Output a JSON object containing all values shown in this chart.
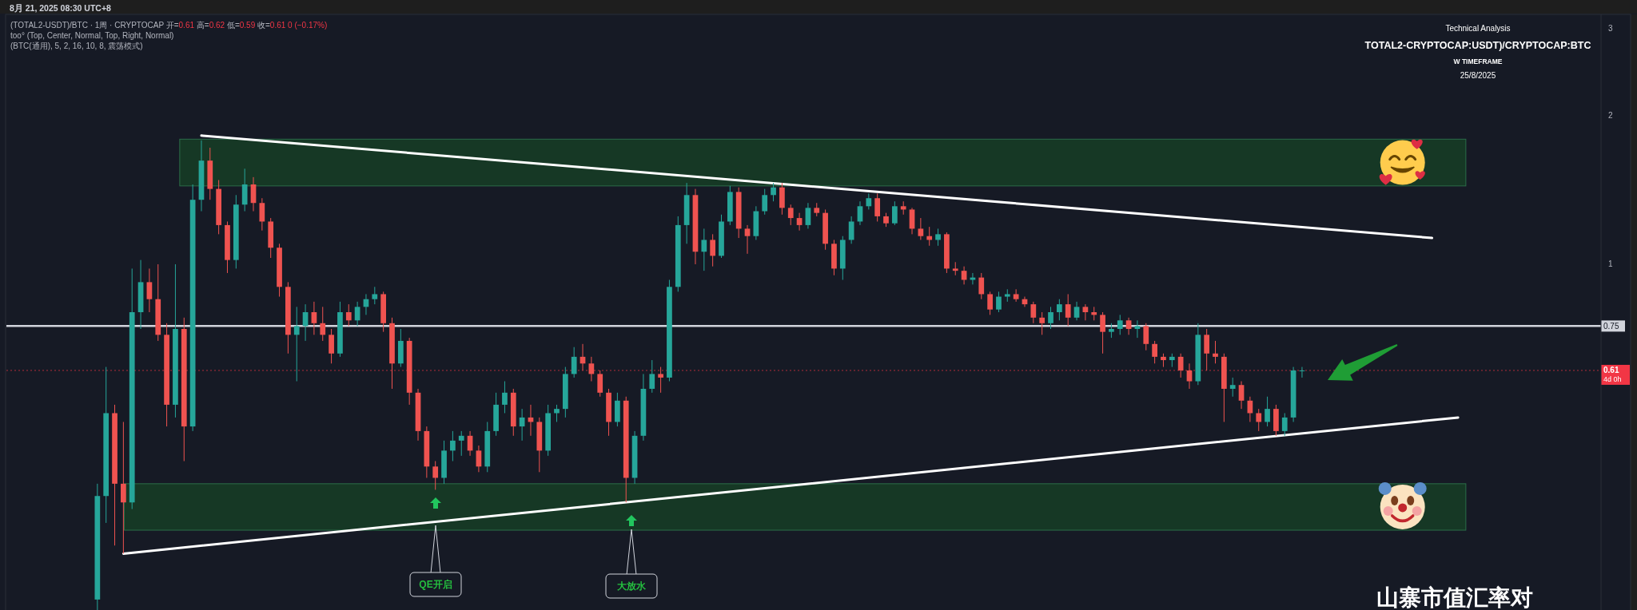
{
  "chart_data": {
    "type": "candlestick",
    "title": "TOTAL2-CRYPTOCAP:USDT)/CRYPTOCAP:BTC",
    "annotations": [
      "8月 21, 2025 08:30 UTC+8",
      "(TOTAL2-USDT)/BTC · 1周 · CRYPTOCAP 开=0.61 高=0.62 低=0.59 收=0.61 0 (−0.17%)",
      "too° (Top, Center, Normal, Top, Right, Normal)",
      "(BTC(通用), 5, 2, 16, 10, 8, 震荡模式)",
      "Technical Analysis",
      "W TIMEFRAME",
      "25/8/2025",
      "QE开启",
      "大放水",
      "山寨市值汇率对"
    ],
    "categories": [
      null,
      null,
      null,
      null,
      null,
      null,
      null,
      null,
      null,
      null,
      null,
      null,
      null,
      null,
      null,
      null,
      null,
      null,
      null,
      null,
      null,
      null,
      null,
      null,
      null,
      null,
      null,
      null,
      null,
      null,
      null,
      null,
      null,
      null,
      null,
      null,
      null,
      null,
      null,
      null,
      null,
      null,
      null,
      null,
      null,
      null,
      null,
      null,
      null,
      null,
      null,
      null,
      null,
      null,
      null,
      null,
      null,
      null,
      null,
      null,
      null,
      null,
      null,
      null,
      null,
      null,
      null,
      null,
      null,
      null,
      null,
      null,
      null,
      null,
      null,
      null,
      null,
      null,
      null,
      null,
      null,
      null,
      null,
      null,
      null,
      null,
      null,
      null,
      null,
      null,
      null,
      null,
      null,
      null,
      null,
      null,
      null,
      null,
      null,
      null,
      null,
      null,
      null,
      null,
      null,
      null,
      null,
      null,
      null,
      null,
      null,
      null,
      null,
      null,
      null,
      null,
      null,
      null,
      null,
      null,
      null,
      null,
      null,
      null,
      null,
      null,
      null,
      null,
      null,
      null,
      null,
      null,
      null,
      null,
      null,
      null,
      null,
      null,
      null,
      null,
      null,
      null,
      null,
      null,
      null,
      null,
      null,
      null,
      null,
      null,
      null,
      null,
      null,
      null,
      null,
      null,
      null,
      null,
      null,
      null,
      null,
      null,
      null,
      null,
      null,
      null,
      null,
      null,
      null,
      null,
      null,
      null,
      null,
      null,
      null,
      null,
      null,
      null,
      null,
      null,
      null,
      null,
      null,
      null
    ],
    "ohlc": [
      null,
      null,
      null,
      null,
      null,
      null,
      null,
      null,
      null,
      null,
      [
        0.21,
        0.36,
        0.2,
        0.34
      ],
      [
        0.34,
        0.62,
        0.3,
        0.5
      ],
      [
        0.5,
        0.52,
        0.27,
        0.36
      ],
      [
        0.36,
        0.48,
        0.26,
        0.33
      ],
      [
        0.33,
        0.98,
        0.32,
        0.8
      ],
      [
        0.8,
        1.02,
        0.74,
        0.92
      ],
      [
        0.92,
        0.98,
        0.8,
        0.85
      ],
      [
        0.85,
        1.0,
        0.7,
        0.72
      ],
      [
        0.72,
        0.76,
        0.47,
        0.52
      ],
      [
        0.52,
        1.0,
        0.49,
        0.74
      ],
      [
        0.74,
        0.78,
        0.4,
        0.47
      ],
      [
        0.47,
        1.45,
        0.46,
        1.35
      ],
      [
        1.35,
        1.78,
        1.28,
        1.62
      ],
      [
        1.62,
        1.72,
        1.35,
        1.42
      ],
      [
        1.42,
        1.48,
        1.15,
        1.2
      ],
      [
        1.2,
        1.22,
        0.96,
        1.02
      ],
      [
        1.02,
        1.38,
        0.98,
        1.32
      ],
      [
        1.32,
        1.56,
        1.28,
        1.45
      ],
      [
        1.45,
        1.5,
        1.28,
        1.33
      ],
      [
        1.33,
        1.36,
        1.17,
        1.22
      ],
      [
        1.22,
        1.24,
        1.03,
        1.08
      ],
      [
        1.08,
        1.1,
        0.86,
        0.9
      ],
      [
        0.9,
        0.92,
        0.66,
        0.72
      ],
      [
        0.72,
        0.82,
        0.58,
        0.75
      ],
      [
        0.75,
        0.83,
        0.7,
        0.8
      ],
      [
        0.8,
        0.84,
        0.72,
        0.76
      ],
      [
        0.76,
        0.82,
        0.7,
        0.72
      ],
      [
        0.72,
        0.74,
        0.63,
        0.66
      ],
      [
        0.66,
        0.84,
        0.65,
        0.8
      ],
      [
        0.8,
        0.83,
        0.75,
        0.77
      ],
      [
        0.77,
        0.84,
        0.75,
        0.82
      ],
      [
        0.82,
        0.87,
        0.79,
        0.85
      ],
      [
        0.85,
        0.9,
        0.83,
        0.87
      ],
      [
        0.87,
        0.88,
        0.73,
        0.76
      ],
      [
        0.76,
        0.78,
        0.56,
        0.63
      ],
      [
        0.63,
        0.74,
        0.62,
        0.7
      ],
      [
        0.7,
        0.71,
        0.52,
        0.55
      ],
      [
        0.55,
        0.56,
        0.44,
        0.46
      ],
      [
        0.46,
        0.47,
        0.37,
        0.39
      ],
      [
        0.39,
        0.4,
        0.35,
        0.37
      ],
      [
        0.37,
        0.44,
        0.36,
        0.42
      ],
      [
        0.42,
        0.46,
        0.4,
        0.44
      ],
      [
        0.44,
        0.46,
        0.41,
        0.45
      ],
      [
        0.45,
        0.46,
        0.41,
        0.42
      ],
      [
        0.42,
        0.43,
        0.38,
        0.39
      ],
      [
        0.39,
        0.48,
        0.38,
        0.46
      ],
      [
        0.46,
        0.55,
        0.45,
        0.52
      ],
      [
        0.52,
        0.58,
        0.5,
        0.55
      ],
      [
        0.55,
        0.56,
        0.45,
        0.47
      ],
      [
        0.47,
        0.51,
        0.44,
        0.49
      ],
      [
        0.49,
        0.52,
        0.45,
        0.48
      ],
      [
        0.48,
        0.49,
        0.38,
        0.42
      ],
      [
        0.42,
        0.52,
        0.41,
        0.5
      ],
      [
        0.5,
        0.52,
        0.48,
        0.51
      ],
      [
        0.51,
        0.62,
        0.49,
        0.6
      ],
      [
        0.6,
        0.68,
        0.59,
        0.65
      ],
      [
        0.65,
        0.69,
        0.61,
        0.63
      ],
      [
        0.63,
        0.65,
        0.58,
        0.6
      ],
      [
        0.6,
        0.61,
        0.54,
        0.55
      ],
      [
        0.55,
        0.56,
        0.45,
        0.48
      ],
      [
        0.48,
        0.55,
        0.47,
        0.53
      ],
      [
        0.53,
        0.54,
        0.33,
        0.37
      ],
      [
        0.37,
        0.46,
        0.36,
        0.45
      ],
      [
        0.45,
        0.6,
        0.44,
        0.56
      ],
      [
        0.56,
        0.64,
        0.55,
        0.6
      ],
      [
        0.6,
        0.62,
        0.55,
        0.59
      ],
      [
        0.59,
        0.93,
        0.58,
        0.9
      ],
      [
        0.9,
        1.25,
        0.88,
        1.2
      ],
      [
        1.2,
        1.46,
        1.1,
        1.38
      ],
      [
        1.38,
        1.42,
        1.0,
        1.06
      ],
      [
        1.06,
        1.18,
        0.97,
        1.12
      ],
      [
        1.12,
        1.15,
        0.99,
        1.04
      ],
      [
        1.04,
        1.26,
        1.03,
        1.22
      ],
      [
        1.22,
        1.44,
        1.2,
        1.4
      ],
      [
        1.4,
        1.43,
        1.13,
        1.18
      ],
      [
        1.18,
        1.2,
        1.05,
        1.14
      ],
      [
        1.14,
        1.31,
        1.12,
        1.28
      ],
      [
        1.28,
        1.42,
        1.26,
        1.38
      ],
      [
        1.38,
        1.46,
        1.34,
        1.43
      ],
      [
        1.43,
        1.46,
        1.26,
        1.3
      ],
      [
        1.3,
        1.32,
        1.2,
        1.24
      ],
      [
        1.24,
        1.27,
        1.17,
        1.2
      ],
      [
        1.2,
        1.33,
        1.18,
        1.3
      ],
      [
        1.3,
        1.33,
        1.25,
        1.27
      ],
      [
        1.27,
        1.29,
        1.07,
        1.1
      ],
      [
        1.1,
        1.12,
        0.95,
        0.98
      ],
      [
        0.98,
        1.14,
        0.93,
        1.12
      ],
      [
        1.12,
        1.25,
        1.1,
        1.22
      ],
      [
        1.22,
        1.34,
        1.2,
        1.31
      ],
      [
        1.31,
        1.39,
        1.29,
        1.36
      ],
      [
        1.36,
        1.39,
        1.22,
        1.25
      ],
      [
        1.25,
        1.27,
        1.19,
        1.21
      ],
      [
        1.21,
        1.34,
        1.2,
        1.31
      ],
      [
        1.31,
        1.34,
        1.26,
        1.29
      ],
      [
        1.29,
        1.3,
        1.15,
        1.18
      ],
      [
        1.18,
        1.24,
        1.12,
        1.14
      ],
      [
        1.14,
        1.19,
        1.09,
        1.12
      ],
      [
        1.12,
        1.18,
        1.09,
        1.15
      ],
      [
        1.15,
        1.16,
        0.96,
        0.98
      ],
      [
        0.98,
        1.01,
        0.95,
        0.97
      ],
      [
        0.97,
        0.99,
        0.91,
        0.93
      ],
      [
        0.93,
        0.96,
        0.91,
        0.94
      ],
      [
        0.94,
        0.96,
        0.85,
        0.87
      ],
      [
        0.87,
        0.88,
        0.79,
        0.81
      ],
      [
        0.81,
        0.88,
        0.8,
        0.86
      ],
      [
        0.86,
        0.89,
        0.84,
        0.87
      ],
      [
        0.87,
        0.89,
        0.84,
        0.85
      ],
      [
        0.85,
        0.86,
        0.82,
        0.83
      ],
      [
        0.83,
        0.84,
        0.76,
        0.78
      ],
      [
        0.78,
        0.8,
        0.72,
        0.76
      ],
      [
        0.76,
        0.82,
        0.74,
        0.8
      ],
      [
        0.8,
        0.85,
        0.77,
        0.83
      ],
      [
        0.83,
        0.87,
        0.75,
        0.78
      ],
      [
        0.78,
        0.84,
        0.77,
        0.82
      ],
      [
        0.82,
        0.83,
        0.77,
        0.8
      ],
      [
        0.8,
        0.82,
        0.77,
        0.79
      ],
      [
        0.79,
        0.8,
        0.66,
        0.73
      ],
      [
        0.73,
        0.76,
        0.71,
        0.74
      ],
      [
        0.74,
        0.79,
        0.72,
        0.77
      ],
      [
        0.77,
        0.78,
        0.72,
        0.74
      ],
      [
        0.74,
        0.77,
        0.71,
        0.75
      ],
      [
        0.75,
        0.76,
        0.67,
        0.69
      ],
      [
        0.69,
        0.7,
        0.63,
        0.65
      ],
      [
        0.65,
        0.66,
        0.62,
        0.64
      ],
      [
        0.64,
        0.66,
        0.62,
        0.65
      ],
      [
        0.65,
        0.66,
        0.59,
        0.61
      ],
      [
        0.61,
        0.63,
        0.56,
        0.58
      ],
      [
        0.58,
        0.76,
        0.57,
        0.72
      ],
      [
        0.72,
        0.74,
        0.61,
        0.66
      ],
      [
        0.66,
        0.7,
        0.63,
        0.65
      ],
      [
        0.65,
        0.66,
        0.48,
        0.56
      ],
      [
        0.56,
        0.59,
        0.54,
        0.57
      ],
      [
        0.57,
        0.58,
        0.51,
        0.53
      ],
      [
        0.53,
        0.54,
        0.48,
        0.5
      ],
      [
        0.5,
        0.51,
        0.46,
        0.48
      ],
      [
        0.48,
        0.54,
        0.47,
        0.51
      ],
      [
        0.51,
        0.52,
        0.45,
        0.46
      ],
      [
        0.46,
        0.5,
        0.45,
        0.49
      ],
      [
        0.49,
        0.62,
        0.48,
        0.61
      ],
      [
        0.61,
        0.62,
        0.59,
        0.61
      ],
      null,
      null,
      null,
      null,
      null,
      null,
      null,
      null,
      null,
      null,
      null,
      null,
      null,
      null,
      null,
      null,
      null,
      null,
      null,
      null,
      null,
      null,
      null,
      null,
      null,
      null,
      null,
      null,
      null,
      null,
      null,
      null,
      null,
      null
    ],
    "colors": [
      null,
      null,
      null,
      null,
      null,
      null,
      null,
      null,
      null,
      null,
      "#26a69a",
      "#26a69a",
      "#ef5350",
      "#ef5350",
      "#26a69a",
      "#26a69a",
      "#ef5350",
      "#ef5350",
      "#ef5350",
      "#26a69a",
      "#ef5350",
      "#26a69a",
      "#26a69a",
      "#ef5350",
      "#ef5350",
      "#ef5350",
      "#26a69a",
      "#26a69a",
      "#ef5350",
      "#ef5350",
      "#ef5350",
      "#ef5350",
      "#ef5350",
      "#26a69a",
      "#26a69a",
      "#ef5350",
      "#ef5350",
      "#ef5350",
      "#26a69a",
      "#ef5350",
      "#26a69a",
      "#26a69a",
      "#26a69a",
      "#ef5350",
      "#ef5350",
      "#26a69a",
      "#ef5350",
      "#ef5350",
      "#ef5350",
      "#ef5350",
      "#26a69a",
      "#26a69a",
      "#26a69a",
      "#ef5350",
      "#ef5350",
      "#26a69a",
      "#26a69a",
      "#26a69a",
      "#ef5350",
      "#26a69a",
      "#ef5350",
      "#ef5350",
      "#26a69a",
      "#26a69a",
      "#26a69a",
      "#26a69a",
      "#ef5350",
      "#ef5350",
      "#ef5350",
      "#ef5350",
      "#26a69a",
      "#ef5350",
      "#26a69a",
      "#26a69a",
      "#26a69a",
      "#ef5350",
      "#26a69a",
      "#26a69a",
      "#26a69a",
      "#ef5350",
      "#26a69a",
      "#ef5350",
      "#26a69a",
      "#26a69a",
      "#ef5350",
      "#ef5350",
      "#26a69a",
      "#26a69a",
      "#26a69a",
      "#ef5350",
      "#ef5350",
      "#ef5350",
      "#26a69a",
      "#ef5350",
      "#ef5350",
      "#ef5350",
      "#26a69a",
      "#26a69a",
      "#26a69a",
      "#26a69a",
      "#ef5350",
      "#ef5350",
      "#26a69a",
      "#ef5350",
      "#ef5350",
      "#ef5350",
      "#ef5350",
      "#26a69a",
      "#ef5350",
      "#ef5350",
      "#ef5350",
      "#26a69a",
      "#ef5350",
      "#ef5350",
      "#26a69a",
      "#26a69a",
      "#ef5350",
      "#ef5350",
      "#ef5350",
      "#ef5350",
      "#26a69a",
      "#26a69a",
      "#ef5350",
      "#26a69a",
      "#ef5350",
      "#ef5350",
      "#ef5350",
      "#26a69a",
      "#26a69a",
      "#ef5350",
      "#26a69a",
      "#ef5350",
      "#ef5350",
      "#ef5350",
      "#26a69a",
      "#ef5350",
      "#ef5350",
      "#26a69a",
      "#ef5350",
      "#ef5350",
      "#ef5350",
      "#26a69a",
      "#ef5350",
      "#ef5350",
      "#ef5350",
      "#26a69a",
      "#ef5350",
      "#26a69a",
      "#26a69a",
      "#26a69a",
      null,
      null,
      null,
      null,
      null,
      null,
      null,
      null,
      null,
      null,
      null,
      null,
      null,
      null,
      null,
      null,
      null,
      null,
      null,
      null,
      null,
      null,
      null,
      null,
      null,
      null,
      null,
      null,
      null,
      null,
      null,
      null,
      null,
      null
    ],
    "series": [
      {
        "type": "line",
        "color": "#ffffff",
        "values": [
          null,
          null,
          null,
          null,
          null,
          null,
          null,
          null,
          null,
          null,
          null,
          null,
          null,
          null,
          null,
          null,
          null,
          null,
          null,
          null,
          null,
          null,
          1.82,
          null,
          null,
          null,
          null,
          null,
          null,
          null,
          null,
          null,
          null,
          null,
          null,
          null,
          null,
          null,
          null,
          null,
          null,
          null,
          null,
          null,
          null,
          null,
          null,
          null,
          null,
          null,
          null,
          null,
          null,
          null,
          null,
          null,
          null,
          null,
          null,
          null,
          null,
          null,
          null,
          null,
          null,
          null,
          null,
          null,
          null,
          null,
          null,
          null,
          null,
          null,
          null,
          null,
          null,
          null,
          null,
          null,
          null,
          null,
          null,
          null,
          null,
          null,
          null,
          null,
          null,
          null,
          null,
          null,
          null,
          null,
          null,
          null,
          null,
          null,
          null,
          null,
          null,
          null,
          null,
          null,
          null,
          null,
          null,
          null,
          null,
          null,
          null,
          null,
          null,
          null,
          null,
          null,
          null,
          null,
          null,
          null,
          null,
          null,
          null,
          null,
          null,
          null,
          null,
          null,
          null,
          null,
          null,
          null,
          null,
          null,
          null,
          null,
          null,
          null,
          null,
          null,
          null,
          null,
          null,
          null,
          null,
          null,
          null,
          null,
          null,
          null,
          null,
          null,
          null,
          null,
          null,
          null,
          null,
          null,
          null,
          null,
          null,
          null,
          null,
          null,
          1.13,
          null,
          null,
          null,
          null,
          null,
          null,
          null,
          null,
          null,
          null,
          null,
          null,
          null,
          null,
          null,
          null,
          null,
          null,
          null
        ]
      },
      {
        "type": "line",
        "color": "#ffffff",
        "values": [
          null,
          null,
          null,
          null,
          null,
          null,
          null,
          null,
          null,
          null,
          null,
          null,
          null,
          0.26,
          null,
          null,
          null,
          null,
          null,
          null,
          null,
          null,
          null,
          null,
          null,
          null,
          null,
          null,
          null,
          null,
          null,
          null,
          null,
          null,
          null,
          null,
          null,
          null,
          null,
          null,
          null,
          null,
          null,
          null,
          null,
          null,
          null,
          null,
          null,
          null,
          null,
          null,
          null,
          null,
          null,
          null,
          null,
          null,
          null,
          null,
          null,
          null,
          null,
          null,
          null,
          null,
          null,
          null,
          null,
          null,
          null,
          null,
          null,
          null,
          null,
          null,
          null,
          null,
          null,
          null,
          null,
          null,
          null,
          null,
          null,
          null,
          null,
          null,
          null,
          null,
          null,
          null,
          null,
          null,
          null,
          null,
          null,
          null,
          null,
          null,
          null,
          null,
          null,
          null,
          null,
          null,
          null,
          null,
          null,
          null,
          null,
          null,
          null,
          null,
          null,
          null,
          null,
          null,
          null,
          null,
          null,
          null,
          null,
          null,
          null,
          null,
          null,
          null,
          null,
          null,
          null,
          null,
          null,
          null,
          null,
          null,
          null,
          null,
          null,
          null,
          null,
          null,
          null,
          null,
          null,
          null,
          null,
          null,
          null,
          null,
          null,
          null,
          null,
          null,
          null,
          null,
          null,
          null,
          null,
          null,
          null,
          null,
          null,
          null,
          null,
          null,
          null,
          0.49,
          null,
          null,
          null,
          null,
          null,
          null,
          null,
          null,
          null,
          null,
          null,
          null,
          null,
          null,
          null,
          null
        ]
      }
    ],
    "ylim": [
      0.2,
      3.2
    ],
    "yticks": [
      1,
      2,
      3
    ],
    "log": true,
    "tick_labels": "y",
    "ref_lines": [
      {
        "axis": "y",
        "value": 0.75,
        "label": "0.75",
        "color": "#d1d4dc"
      },
      {
        "axis": "y",
        "value": 0.61,
        "label": "0.61\n4d 0h",
        "color": "#f23645",
        "line_style": "dotted"
      }
    ],
    "bands": [
      {
        "axis": "y",
        "from": 1.44,
        "to": 1.79,
        "color": "#163825"
      },
      {
        "axis": "y",
        "from": 0.29,
        "to": 0.36,
        "color": "#163825"
      }
    ]
  }
}
